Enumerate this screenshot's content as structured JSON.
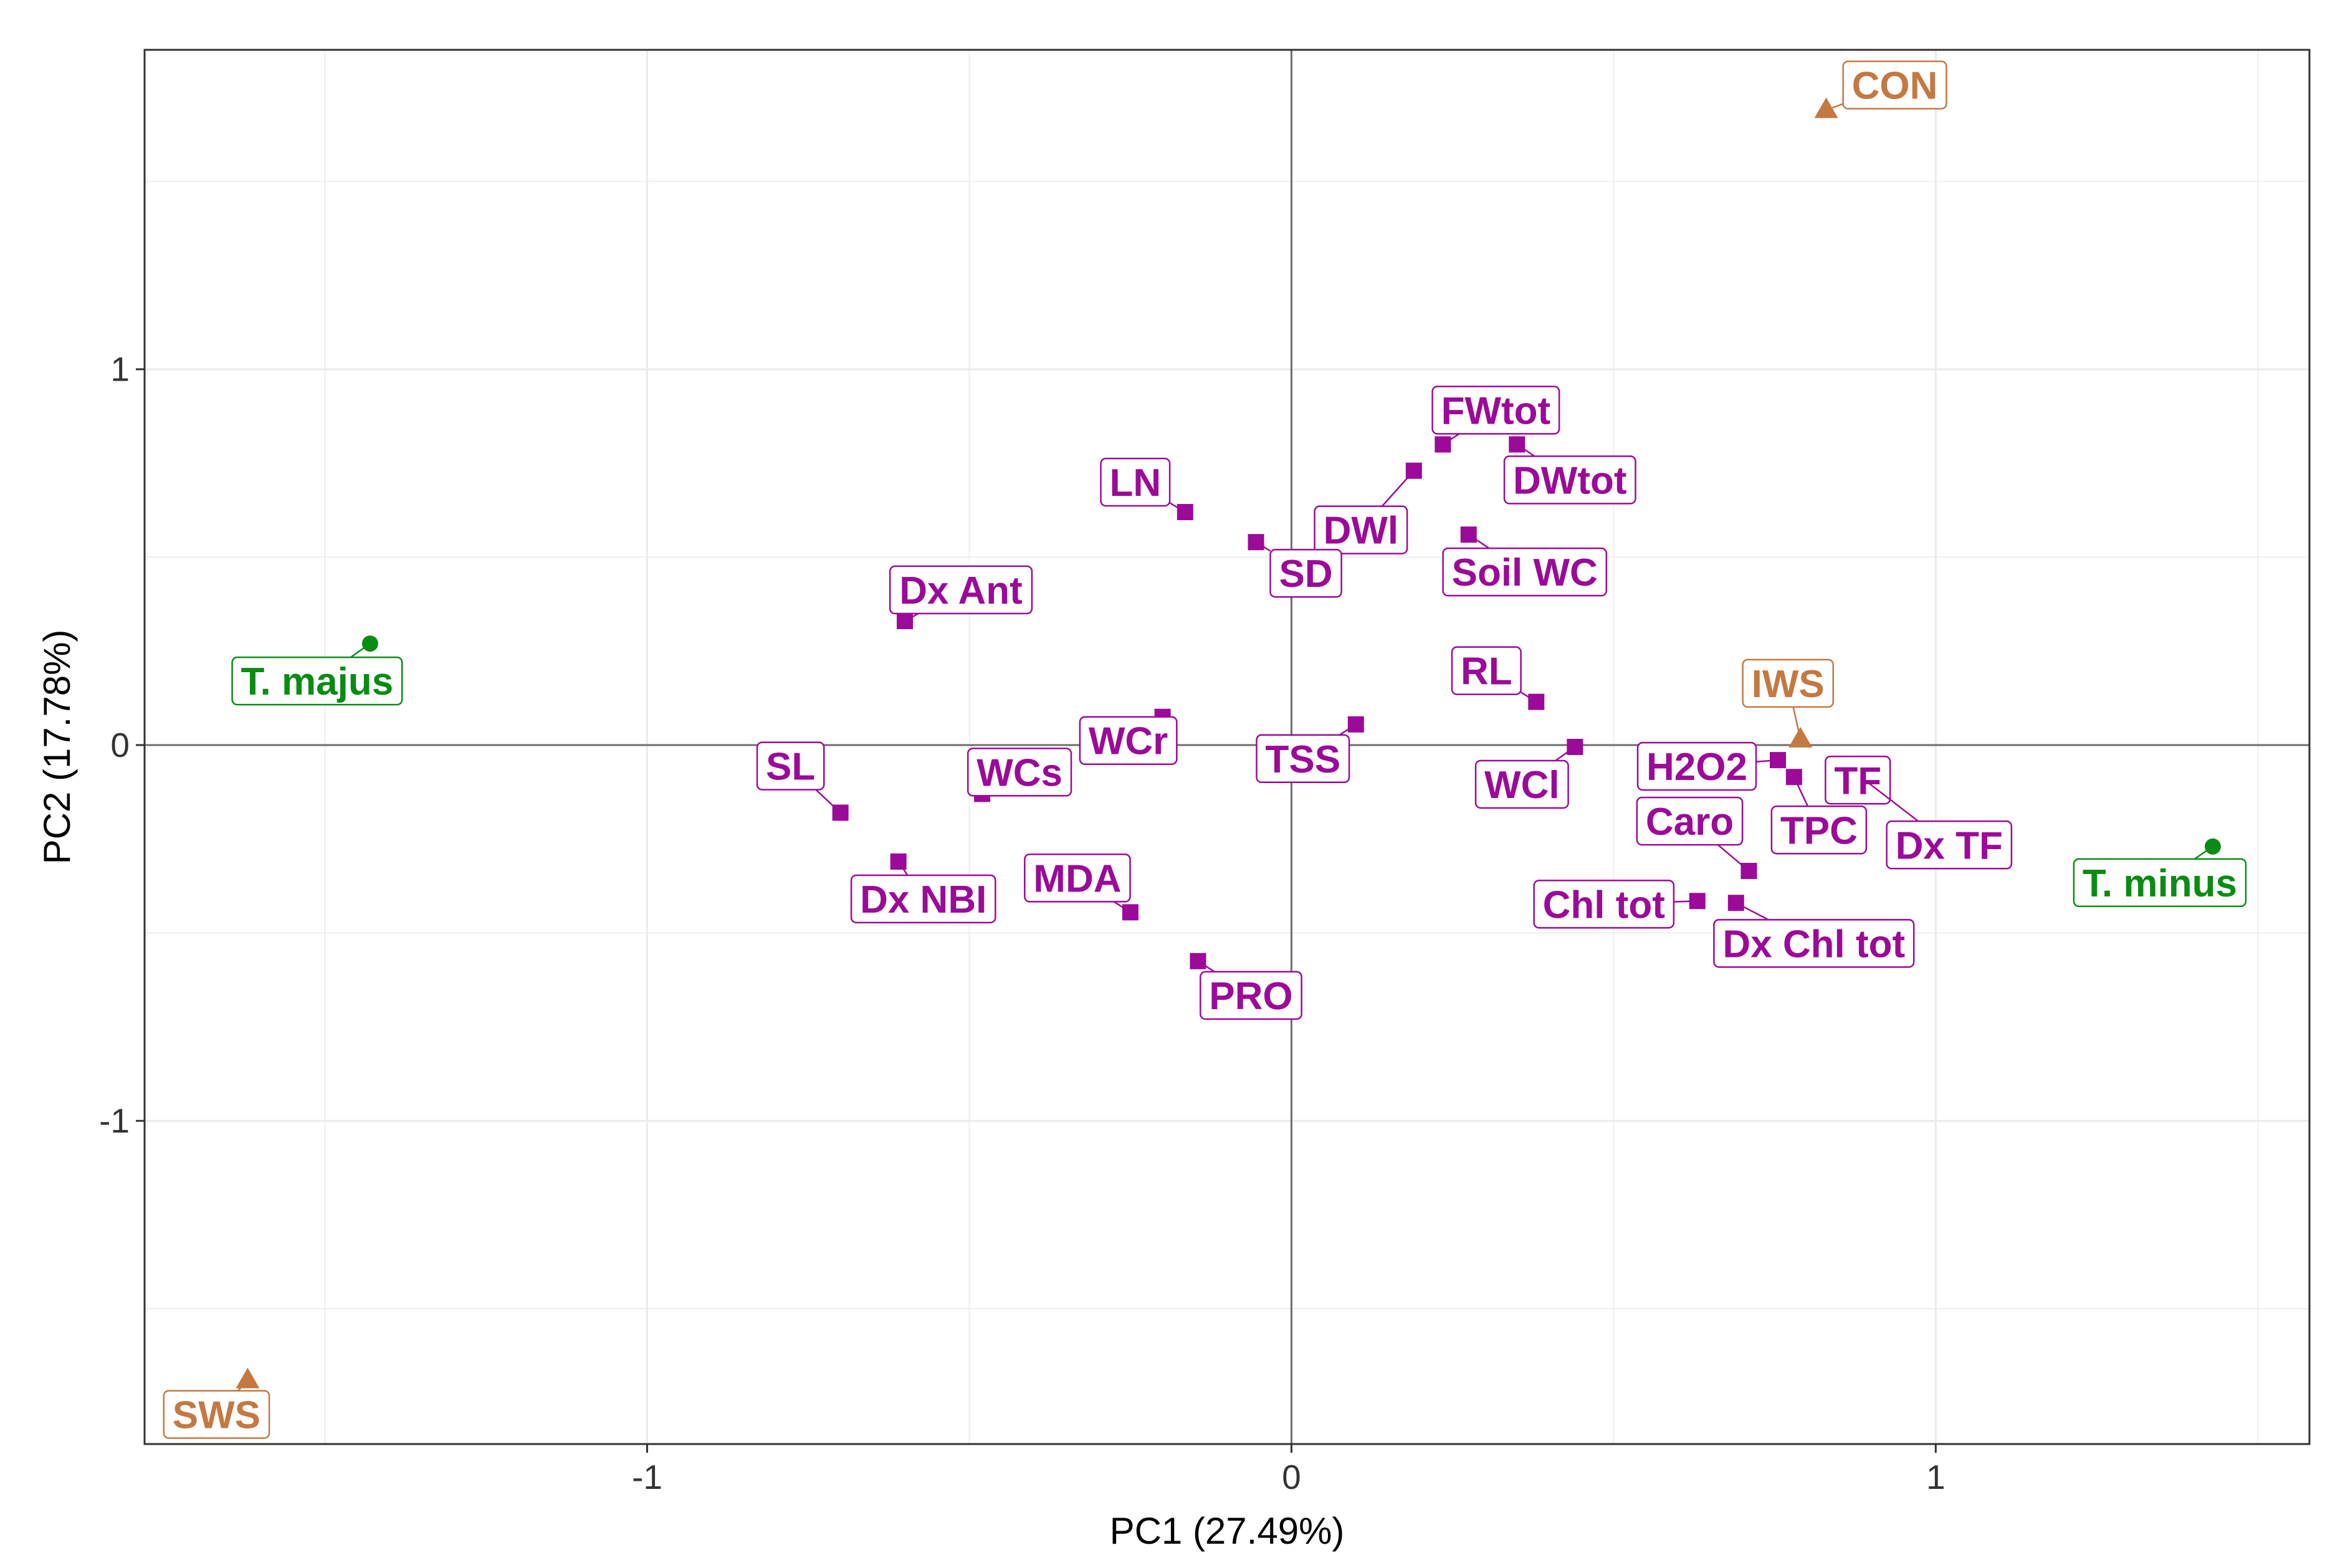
{
  "chart_data": {
    "type": "scatter",
    "title": "",
    "xlabel": "PC1 (27.49%)",
    "ylabel": "PC2 (17.78%)",
    "xlim": [
      -1.78,
      1.58
    ],
    "ylim": [
      -1.86,
      1.85
    ],
    "xticks": [
      -1,
      0,
      1
    ],
    "yticks": [
      -1,
      0,
      1
    ],
    "xtick_labels": [
      "-1",
      "0",
      "1"
    ],
    "ytick_labels": [
      "-1",
      "0",
      "1"
    ],
    "grid": true,
    "colors": {
      "variables": "#9B0A98",
      "species": "#0A8C14",
      "treatments": "#C47842"
    },
    "series": [
      {
        "name": "variables",
        "marker": "square",
        "points": [
          {
            "label": "FWtot",
            "x": 0.235,
            "y": 0.8
          },
          {
            "label": "DWtot",
            "x": 0.35,
            "y": 0.8
          },
          {
            "label": "DWl",
            "x": 0.19,
            "y": 0.73
          },
          {
            "label": "LN",
            "x": -0.165,
            "y": 0.62
          },
          {
            "label": "SD",
            "x": -0.055,
            "y": 0.54
          },
          {
            "label": "Soil WC",
            "x": 0.275,
            "y": 0.56
          },
          {
            "label": "Dx Ant",
            "x": -0.6,
            "y": 0.33
          },
          {
            "label": "RL",
            "x": 0.38,
            "y": 0.115
          },
          {
            "label": "WCr",
            "x": -0.2,
            "y": 0.075
          },
          {
            "label": "TSS",
            "x": 0.1,
            "y": 0.055
          },
          {
            "label": "WCl",
            "x": 0.44,
            "y": -0.005
          },
          {
            "label": "WCs",
            "x": -0.48,
            "y": -0.13
          },
          {
            "label": "SL",
            "x": -0.7,
            "y": -0.18
          },
          {
            "label": "Dx NBI",
            "x": -0.61,
            "y": -0.31
          },
          {
            "label": "MDA",
            "x": -0.25,
            "y": -0.445
          },
          {
            "label": "PRO",
            "x": -0.145,
            "y": -0.575
          },
          {
            "label": "H2O2",
            "x": 0.755,
            "y": -0.04
          },
          {
            "label": "TPC",
            "x": 0.78,
            "y": -0.085
          },
          {
            "label": "TF",
            "x": 0.85,
            "y": -0.085
          },
          {
            "label": "Dx TF",
            "x": 0.895,
            "y": -0.1
          },
          {
            "label": "Caro",
            "x": 0.71,
            "y": -0.335
          },
          {
            "label": "Chl tot",
            "x": 0.63,
            "y": -0.415
          },
          {
            "label": "Dx Chl tot",
            "x": 0.69,
            "y": -0.42
          }
        ]
      },
      {
        "name": "species",
        "marker": "circle",
        "points": [
          {
            "label": "T. majus",
            "x": -1.43,
            "y": 0.27
          },
          {
            "label": "T. minus",
            "x": 1.43,
            "y": -0.27
          }
        ]
      },
      {
        "name": "treatments",
        "marker": "triangle",
        "points": [
          {
            "label": "CON",
            "x": 0.83,
            "y": 1.69
          },
          {
            "label": "IWS",
            "x": 0.79,
            "y": 0.015
          },
          {
            "label": "SWS",
            "x": -1.62,
            "y": -1.69
          }
        ]
      }
    ]
  }
}
